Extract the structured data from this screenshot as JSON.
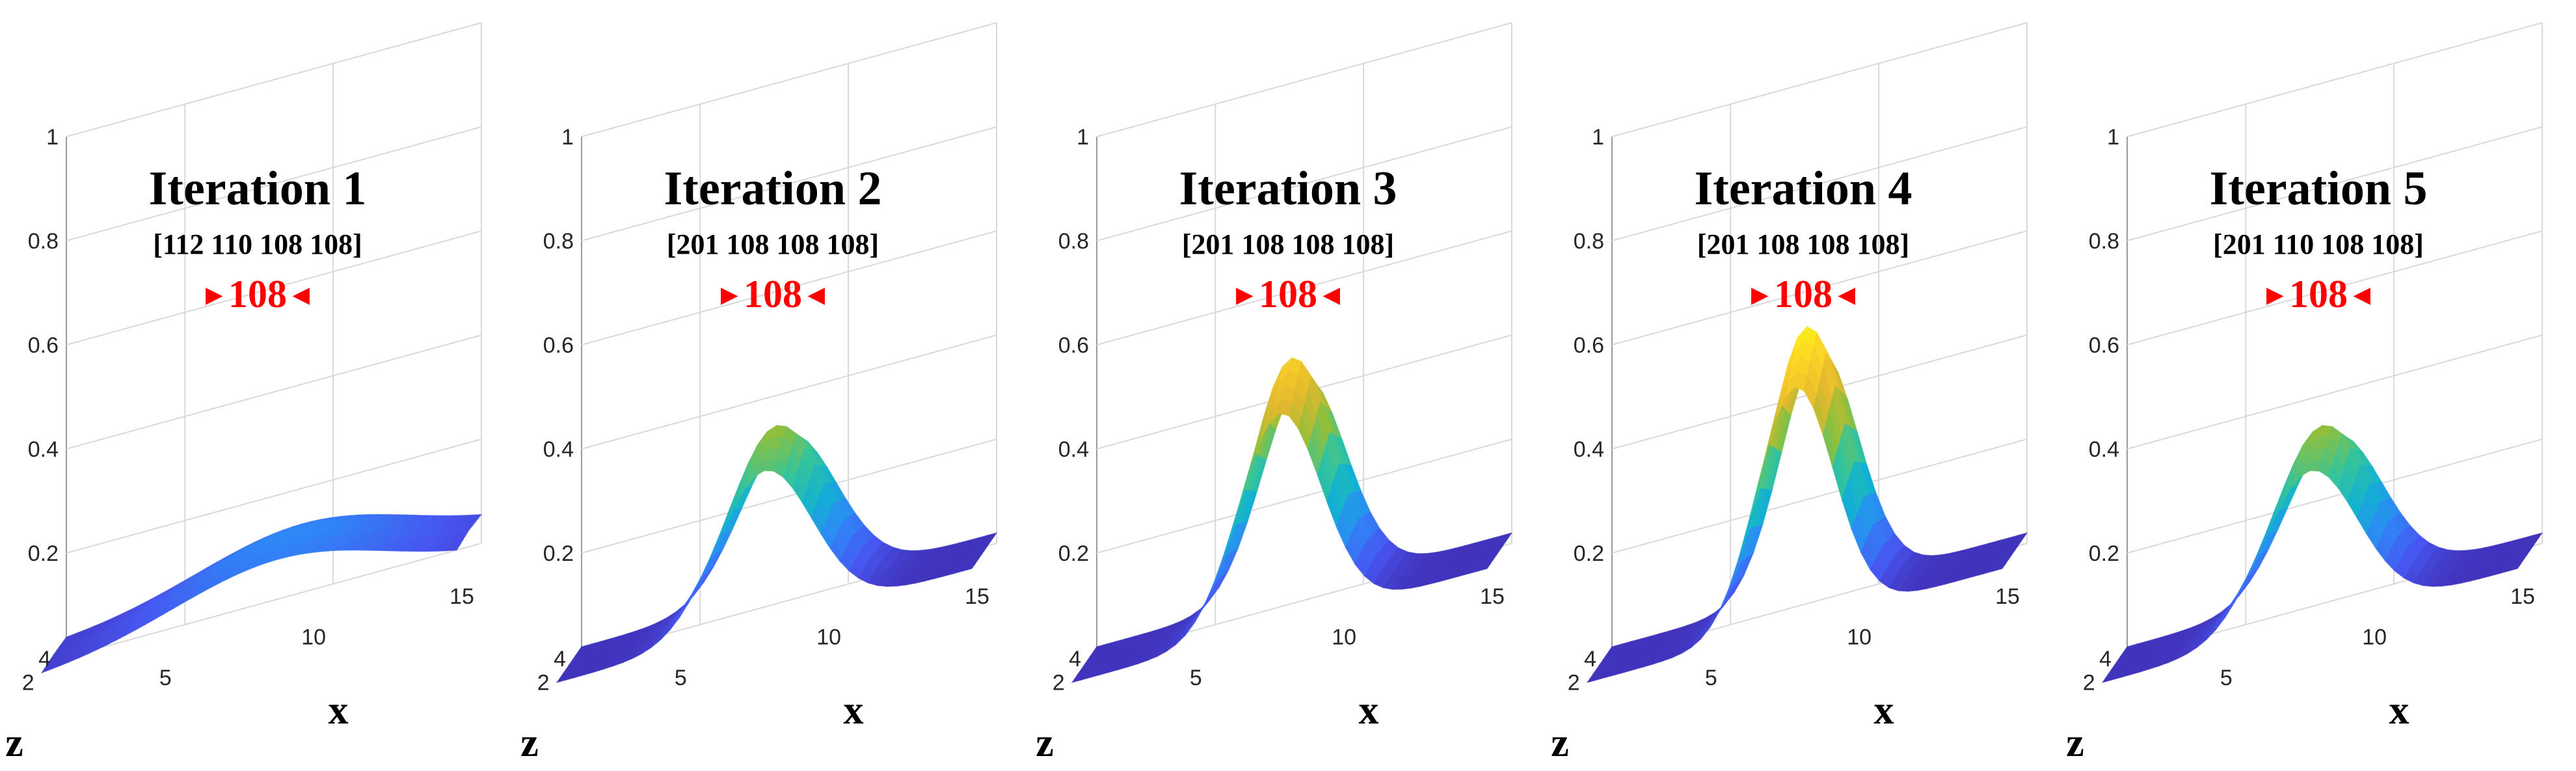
{
  "chart_data": [
    {
      "type": "surface",
      "title": "Iteration 1",
      "vector": "[112 110 108 108]",
      "marker_value": "108",
      "marker_left": "►",
      "marker_right": "◄",
      "xlabel": "x",
      "zlabel": "z",
      "ylim": [
        0,
        1
      ],
      "xlim": [
        1,
        15
      ],
      "zlim": [
        1,
        4
      ],
      "vertical_ticks": [
        "0.2",
        "0.4",
        "0.6",
        "0.8",
        "1"
      ],
      "x_ticks": [
        "5",
        "10",
        "15"
      ],
      "z_ticks": [
        "2",
        "4"
      ],
      "peak": 0.15,
      "peak_x": 9,
      "width": 3.6,
      "floor": 0.03
    },
    {
      "type": "surface",
      "title": "Iteration 2",
      "vector": "[201 108 108 108]",
      "marker_value": "108",
      "marker_left": "►",
      "marker_right": "◄",
      "xlabel": "x",
      "zlabel": "z",
      "ylim": [
        0,
        1
      ],
      "xlim": [
        1,
        15
      ],
      "zlim": [
        1,
        4
      ],
      "vertical_ticks": [
        "0.2",
        "0.4",
        "0.6",
        "0.8",
        "1"
      ],
      "x_ticks": [
        "5",
        "10",
        "15"
      ],
      "z_ticks": [
        "2",
        "4"
      ],
      "peak": 0.37,
      "peak_x": 8,
      "width": 1.6,
      "floor": 0.02
    },
    {
      "type": "surface",
      "title": "Iteration 3",
      "vector": "[201 108 108 108]",
      "marker_value": "108",
      "marker_left": "►",
      "marker_right": "◄",
      "xlabel": "x",
      "zlabel": "z",
      "ylim": [
        0,
        1
      ],
      "xlim": [
        1,
        15
      ],
      "zlim": [
        1,
        4
      ],
      "vertical_ticks": [
        "0.2",
        "0.4",
        "0.6",
        "0.8",
        "1"
      ],
      "x_ticks": [
        "5",
        "10",
        "15"
      ],
      "z_ticks": [
        "2",
        "4"
      ],
      "peak": 0.5,
      "peak_x": 8,
      "width": 1.4,
      "floor": 0.02
    },
    {
      "type": "surface",
      "title": "Iteration 4",
      "vector": "[201 108 108 108]",
      "marker_value": "108",
      "marker_left": "►",
      "marker_right": "◄",
      "xlabel": "x",
      "zlabel": "z",
      "ylim": [
        0,
        1
      ],
      "xlim": [
        1,
        15
      ],
      "zlim": [
        1,
        4
      ],
      "vertical_ticks": [
        "0.2",
        "0.4",
        "0.6",
        "0.8",
        "1"
      ],
      "x_ticks": [
        "5",
        "10",
        "15"
      ],
      "z_ticks": [
        "2",
        "4"
      ],
      "peak": 0.56,
      "peak_x": 8,
      "width": 1.3,
      "floor": 0.02
    },
    {
      "type": "surface",
      "title": "Iteration 5",
      "vector": "[201 110 108 108]",
      "marker_value": "108",
      "marker_left": "►",
      "marker_right": "◄",
      "xlabel": "x",
      "zlabel": "z",
      "ylim": [
        0,
        1
      ],
      "xlim": [
        1,
        15
      ],
      "zlim": [
        1,
        4
      ],
      "vertical_ticks": [
        "0.2",
        "0.4",
        "0.6",
        "0.8",
        "1"
      ],
      "x_ticks": [
        "5",
        "10",
        "15"
      ],
      "z_ticks": [
        "2",
        "4"
      ],
      "peak": 0.37,
      "peak_x": 8,
      "width": 1.6,
      "floor": 0.02
    }
  ],
  "colors": {
    "marker": "#ff0000",
    "colormap": [
      "#3e26a8",
      "#4755f0",
      "#2e87f7",
      "#12b1d2",
      "#34c49b",
      "#92bf3a",
      "#e3b82e",
      "#fcd426",
      "#f9fb15"
    ]
  }
}
